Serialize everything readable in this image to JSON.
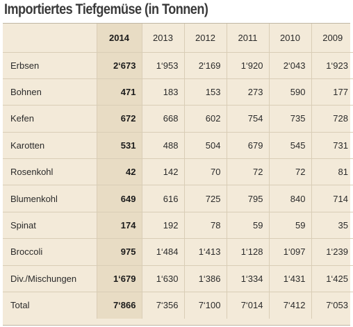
{
  "title": "Importiertes Tiefgemüse (in Tonnen)",
  "header": {
    "label": "",
    "years": [
      "2014",
      "2013",
      "2012",
      "2011",
      "2010",
      "2009"
    ]
  },
  "rows": [
    {
      "label": "Erbsen",
      "values": [
        "2‘673",
        "1‘953",
        "2‘169",
        "1‘920",
        "2‘043",
        "1‘923"
      ]
    },
    {
      "label": "Bohnen",
      "values": [
        "471",
        "183",
        "153",
        "273",
        "590",
        "177"
      ]
    },
    {
      "label": "Kefen",
      "values": [
        "672",
        "668",
        "602",
        "754",
        "735",
        "728"
      ]
    },
    {
      "label": "Karotten",
      "values": [
        "531",
        "488",
        "504",
        "679",
        "545",
        "731"
      ]
    },
    {
      "label": "Rosenkohl",
      "values": [
        "42",
        "142",
        "70",
        "72",
        "72",
        "81"
      ]
    },
    {
      "label": "Blumenkohl",
      "values": [
        "649",
        "616",
        "725",
        "795",
        "840",
        "714"
      ]
    },
    {
      "label": "Spinat",
      "values": [
        "174",
        "192",
        "78",
        "59",
        "59",
        "35"
      ]
    },
    {
      "label": "Broccoli",
      "values": [
        "975",
        "1‘484",
        "1‘413",
        "1‘128",
        "1‘097",
        "1‘239"
      ]
    },
    {
      "label": "Div./Mischungen",
      "values": [
        "1‘679",
        "1‘630",
        "1‘386",
        "1‘334",
        "1‘431",
        "1‘425"
      ]
    },
    {
      "label": "Total",
      "values": [
        "7‘866",
        "7‘356",
        "7‘100",
        "7‘014",
        "7‘412",
        "7‘053"
      ]
    }
  ],
  "colors": {
    "background": "#f3ead9",
    "highlight_column": "#e8dcc4",
    "rule": "#d9cdb6"
  }
}
